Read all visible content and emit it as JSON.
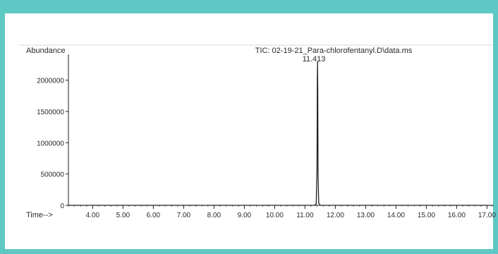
{
  "chart_data": {
    "type": "line",
    "title": "TIC: 02-19-21_Para-chlorofentanyl.D\\data.ms",
    "ylabel": "Abundance",
    "xlabel": "Time-->",
    "xlim": [
      3.2,
      17.2
    ],
    "ylim": [
      0,
      2300000
    ],
    "xticks": [
      "4.00",
      "5.00",
      "6.00",
      "7.00",
      "8.00",
      "9.00",
      "10.00",
      "11.00",
      "12.00",
      "13.00",
      "14.00",
      "15.00",
      "16.00",
      "17.00"
    ],
    "yticks": [
      "0",
      "500000",
      "1000000",
      "1500000",
      "2000000"
    ],
    "peak_label": "11.413",
    "series": [
      {
        "x": [
          3.2,
          11.3,
          11.37,
          11.395,
          11.405,
          11.413,
          11.421,
          11.43,
          11.45,
          11.5,
          17.2
        ],
        "y": [
          0,
          0,
          20000,
          600000,
          1900000,
          2300000,
          1800000,
          500000,
          40000,
          0,
          0
        ]
      }
    ]
  }
}
